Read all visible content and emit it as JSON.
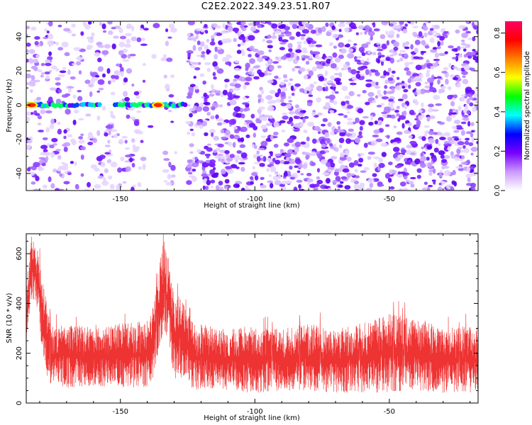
{
  "title": "C2E2.2022.349.23.51.R07",
  "chart_data": [
    {
      "type": "heatmap",
      "xlabel": "Height of straight line (km)",
      "ylabel": "Frequency (Hz)",
      "xlim": [
        -185,
        -17
      ],
      "ylim": [
        -50,
        49
      ],
      "x_ticks": [
        -150,
        -100,
        -50
      ],
      "y_ticks": [
        -40,
        -20,
        0,
        20,
        40
      ],
      "colorbar": {
        "label": "Normalized spectral amplitude",
        "range": [
          0,
          0.86
        ],
        "ticks": [
          0.0,
          0.2,
          0.4,
          0.6,
          0.8
        ],
        "colors": [
          "#ffffff",
          "#cc99ff",
          "#7700ff",
          "#0000ff",
          "#00ffff",
          "#00ff00",
          "#ffff00",
          "#ff7f00",
          "#ff0000",
          "#ff0066"
        ]
      },
      "empty_gaps_x": [
        [
          -141,
          -134
        ],
        [
          -130,
          -125
        ]
      ],
      "signal_band": {
        "frequency": 0,
        "segments": [
          [
            -185,
            -166
          ],
          [
            -164,
            -157
          ],
          [
            -152,
            -125
          ]
        ],
        "peak_x": [
          -183,
          -136
        ]
      }
    },
    {
      "type": "line",
      "xlabel": "Height of straight line (km)",
      "ylabel": "SNR (10 * v/v)",
      "xlim": [
        -185,
        -17
      ],
      "ylim": [
        0,
        680
      ],
      "x_ticks": [
        -150,
        -100,
        -50
      ],
      "y_ticks": [
        0,
        200,
        400,
        600
      ],
      "color": "#ee3333",
      "series": [
        {
          "x": [
            -185,
            -183,
            -181,
            -179,
            -177,
            -175,
            -170,
            -160,
            -150,
            -140,
            -138,
            -136,
            -134,
            -132,
            -130,
            -128,
            -126,
            -124,
            -122,
            -120,
            -110,
            -100,
            -90,
            -80,
            -70,
            -60,
            -50,
            -40,
            -30,
            -20,
            -17
          ],
          "low": [
            250,
            420,
            380,
            200,
            60,
            80,
            60,
            70,
            60,
            60,
            80,
            200,
            280,
            230,
            80,
            100,
            110,
            60,
            50,
            60,
            50,
            40,
            50,
            50,
            40,
            40,
            40,
            50,
            40,
            40,
            40
          ],
          "high": [
            450,
            680,
            640,
            500,
            380,
            300,
            320,
            300,
            320,
            330,
            380,
            520,
            660,
            580,
            420,
            440,
            430,
            380,
            300,
            320,
            300,
            310,
            300,
            320,
            300,
            320,
            360,
            340,
            310,
            310,
            300
          ]
        }
      ]
    }
  ]
}
